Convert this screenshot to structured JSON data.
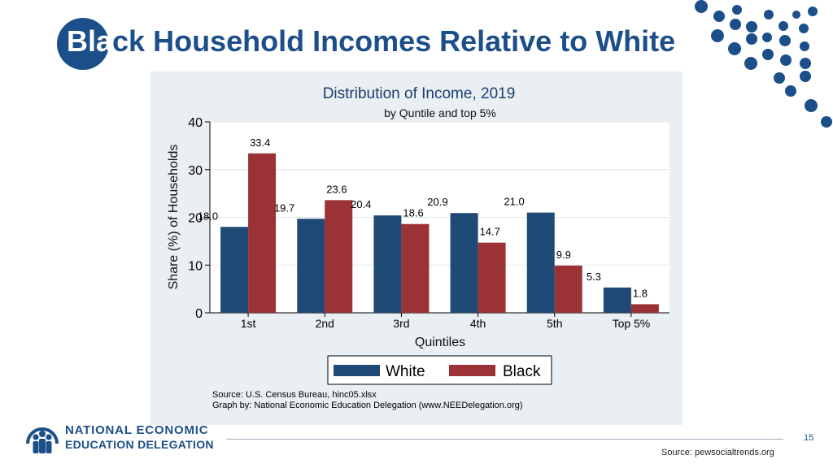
{
  "slide": {
    "title_head": "Bla",
    "title_tail": "ck Household Incomes Relative to White",
    "page_number": "15",
    "source": "Source: pewsocialtrends.org",
    "logo_line1": "NATIONAL ECONOMIC",
    "logo_line2": "EDUCATION DELEGATION"
  },
  "colors": {
    "brand": "#1c4f8a",
    "white_series": "#1f4a75",
    "black_series": "#9a3236",
    "panel": "#e9eff3"
  },
  "chart_data": {
    "type": "bar",
    "title": "Distribution of Income, 2019",
    "subtitle": "by Quntile and top 5%",
    "xlabel": "Quintiles",
    "ylabel": "Share (%) of Households",
    "ylim": [
      0,
      40
    ],
    "yticks": [
      "0",
      "10",
      "20",
      "30",
      "40"
    ],
    "grid": true,
    "legend_position": "bottom",
    "categories": [
      "1st",
      "2nd",
      "3rd",
      "4th",
      "5th",
      "Top 5%"
    ],
    "series": [
      {
        "name": "White",
        "values": [
          18.0,
          19.7,
          20.4,
          20.9,
          21.0,
          5.3
        ],
        "labels": [
          "18.0",
          "19.7",
          "20.4",
          "20.9",
          "21.0",
          "5.3"
        ]
      },
      {
        "name": "Black",
        "values": [
          33.4,
          23.6,
          18.6,
          14.7,
          9.9,
          1.8
        ],
        "labels": [
          "33.4",
          "23.6",
          "18.6",
          "14.7",
          "9.9",
          "1.8"
        ]
      }
    ],
    "source_line1": "Source: U.S. Census Bureau, hinc05.xlsx",
    "source_line2": "Graph by: National Economic Education Delegation (www.NEEDelegation.org)"
  }
}
